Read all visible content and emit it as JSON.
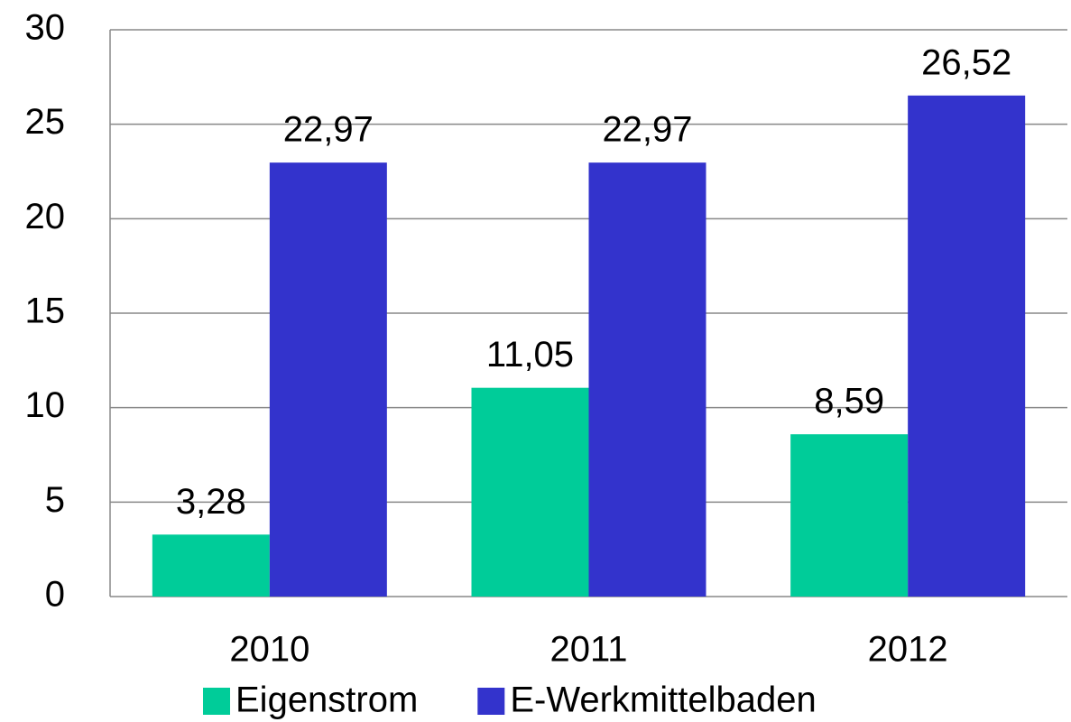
{
  "chart_data": {
    "type": "bar",
    "categories": [
      "2010",
      "2011",
      "2012"
    ],
    "series": [
      {
        "name": "Eigenstrom",
        "color": "#00cc99",
        "values": [
          3.28,
          11.05,
          8.59
        ],
        "value_labels": [
          "3,28",
          "11,05",
          "8,59"
        ]
      },
      {
        "name": "E-Werkmittelbaden",
        "color": "#3333cc",
        "values": [
          22.97,
          22.97,
          26.52
        ],
        "value_labels": [
          "22,97",
          "22,97",
          "26,52"
        ]
      }
    ],
    "ylim": [
      0,
      30
    ],
    "yticks": [
      0,
      5,
      10,
      15,
      20,
      25,
      30
    ],
    "grid": true,
    "legend": "bottom"
  }
}
